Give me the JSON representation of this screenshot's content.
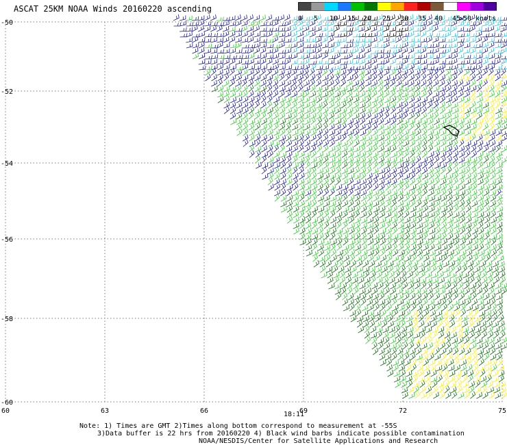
{
  "title": "ASCAT 25KM NOAA Winds 20160220 ascending",
  "legend": {
    "labels": [
      "0",
      "5",
      "10",
      "15",
      "20",
      "25",
      "30",
      "35",
      "40",
      "45",
      ">50 knots"
    ],
    "colors": [
      "#444444",
      "#9a9a9a",
      "#00d8ff",
      "#1e78ff",
      "#00c000",
      "#007800",
      "#ffff00",
      "#ffa500",
      "#ff2020",
      "#b00000",
      "#7a5a3a",
      "#ffffff",
      "#ff00ff",
      "#a000e0",
      "#5000a0"
    ]
  },
  "map": {
    "lat_labels": [
      "-50",
      "-52",
      "-54",
      "-56",
      "-58",
      "-60"
    ],
    "lon_labels": [
      "60",
      "63",
      "66",
      "69",
      "72",
      "75"
    ],
    "time_label": "18:11",
    "barb_colors": {
      "calm": "#000000",
      "light": "#18c8e8",
      "moderate": "#1414a8",
      "fresh": "#22d422",
      "strong": "#0a6e0a",
      "gale": "#ffee00"
    }
  },
  "notes": [
    "Note: 1) Times are GMT 2)Times along bottom correspond to measurement at -55S",
    "3)Data buffer is 22 hrs from 20160220 4) Black wind barbs indicate possible contamination",
    "NOAA/NESDIS/Center for Satellite Applications and Research"
  ]
}
